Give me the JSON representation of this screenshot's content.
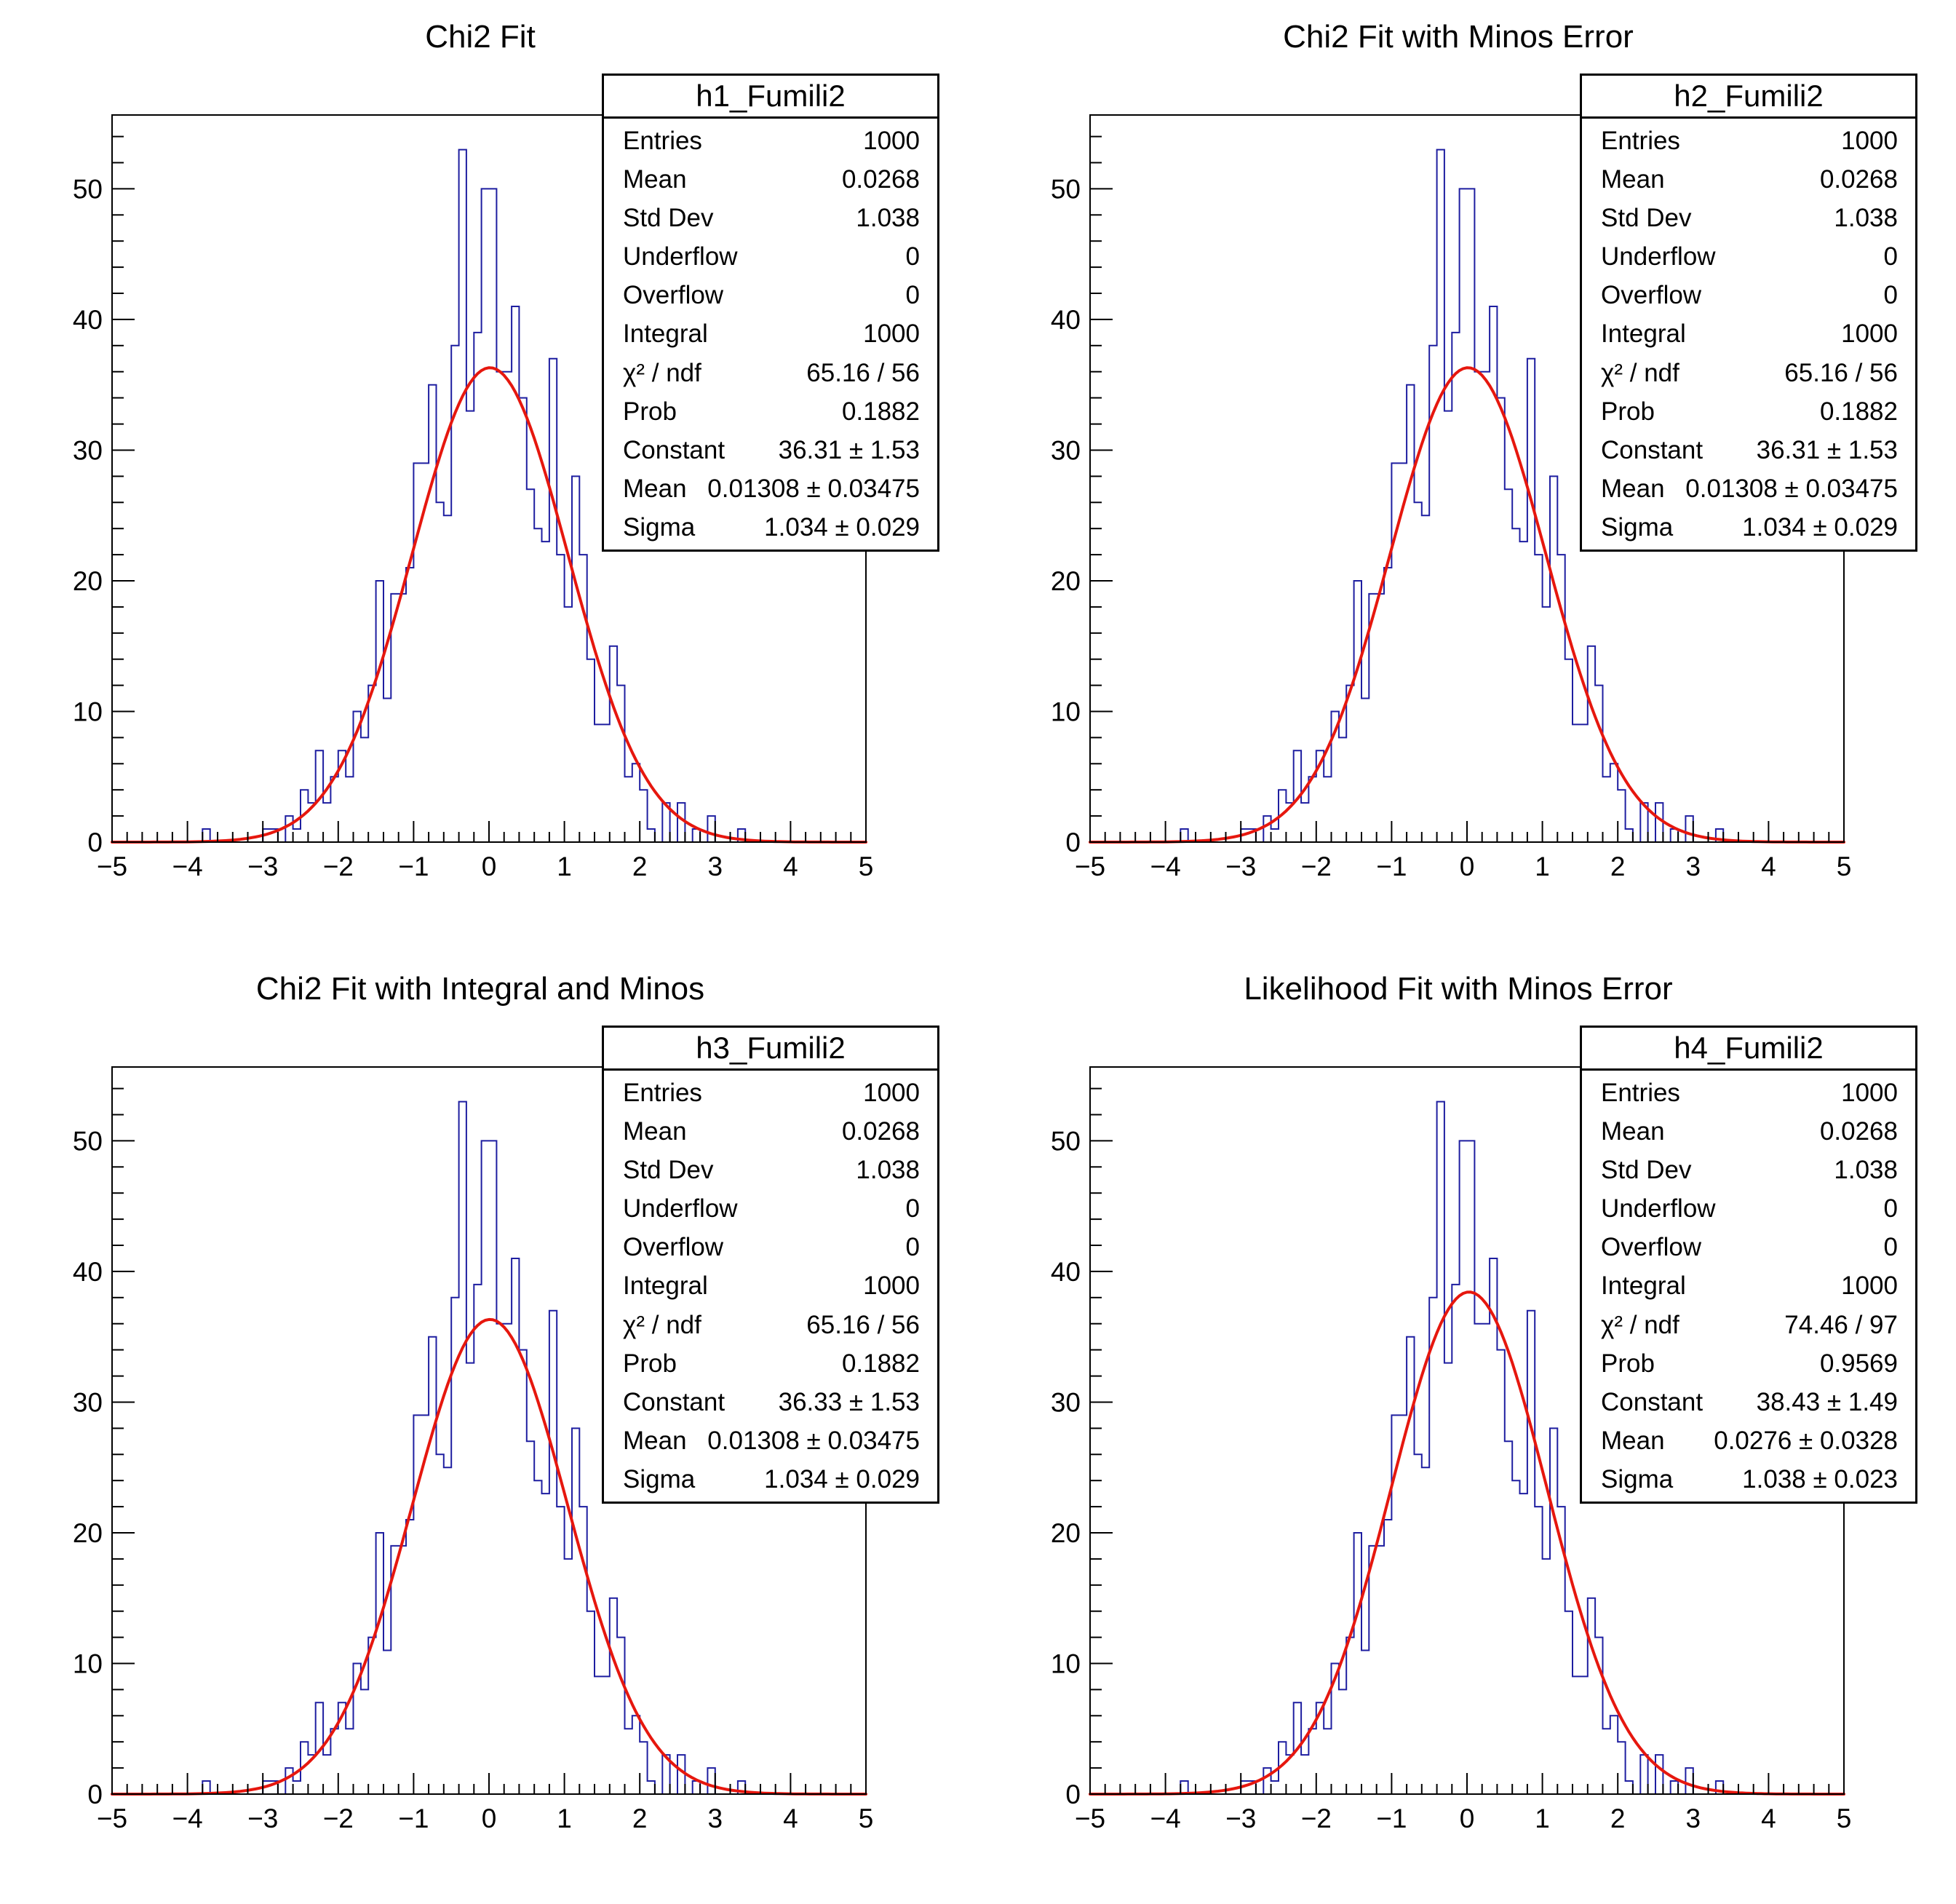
{
  "page": {
    "background": "#ffffff"
  },
  "colors": {
    "histogram_line": "#1e1ea0",
    "fit_curve": "#e6170e",
    "frame": "#000000",
    "text": "#000000",
    "stats_background": "#ffffff"
  },
  "chart_data": {
    "type": "bar",
    "subtype": "histogram-with-gaussian-fit",
    "grid": false,
    "shared_histogram": {
      "x_min": -5,
      "x_max": 5,
      "bins": 100,
      "bin_width": 0.1,
      "entries": 1000,
      "counts": [
        0,
        0,
        0,
        0,
        0,
        0,
        0,
        0,
        0,
        0,
        0,
        0,
        1,
        0,
        0,
        0,
        0,
        0,
        0,
        0,
        1,
        1,
        0,
        2,
        1,
        4,
        3,
        7,
        3,
        5,
        7,
        5,
        10,
        8,
        12,
        20,
        11,
        19,
        19,
        21,
        29,
        29,
        35,
        26,
        25,
        38,
        53,
        33,
        39,
        50,
        50,
        36,
        36,
        41,
        34,
        27,
        24,
        23,
        37,
        22,
        18,
        28,
        22,
        14,
        9,
        9,
        15,
        12,
        5,
        6,
        4,
        1,
        0,
        3,
        0,
        3,
        0,
        1,
        0,
        2,
        0,
        0,
        0,
        1,
        0,
        0,
        0,
        0,
        0,
        0,
        0,
        0,
        0,
        0,
        0,
        0,
        0,
        0,
        0,
        0
      ]
    },
    "x_axis": {
      "min": -5,
      "max": 5,
      "major_step": 1,
      "minor_step": 0.2,
      "major_tick_labels": [
        "−5",
        "−4",
        "−3",
        "−2",
        "−1",
        "0",
        "1",
        "2",
        "3",
        "4",
        "5"
      ]
    },
    "y_axis": {
      "min": 0,
      "max": 55.65,
      "major_step": 10,
      "minor_step": 2,
      "major_tick_labels": [
        "0",
        "10",
        "20",
        "30",
        "40",
        "50"
      ]
    },
    "panels": [
      {
        "title": "Chi2 Fit",
        "fit": {
          "constant": 36.31,
          "mean": 0.01308,
          "sigma": 1.034
        },
        "stats": {
          "name": "h1_Fumili2",
          "rows": [
            {
              "label": "Entries",
              "value": "1000"
            },
            {
              "label": "Mean",
              "value": "0.0268"
            },
            {
              "label": "Std Dev",
              "value": "1.038"
            },
            {
              "label": "Underflow",
              "value": "0"
            },
            {
              "label": "Overflow",
              "value": "0"
            },
            {
              "label": "Integral",
              "value": "1000"
            },
            {
              "label": "χ² / ndf",
              "value": "65.16 / 56"
            },
            {
              "label": "Prob",
              "value": "0.1882"
            },
            {
              "label": "Constant",
              "value": "36.31 ± 1.53"
            },
            {
              "label": "Mean",
              "value": "0.01308 ± 0.03475"
            },
            {
              "label": "Sigma",
              "value": "1.034 ± 0.029"
            }
          ]
        }
      },
      {
        "title": "Chi2 Fit with Minos Error",
        "fit": {
          "constant": 36.31,
          "mean": 0.01308,
          "sigma": 1.034
        },
        "stats": {
          "name": "h2_Fumili2",
          "rows": [
            {
              "label": "Entries",
              "value": "1000"
            },
            {
              "label": "Mean",
              "value": "0.0268"
            },
            {
              "label": "Std Dev",
              "value": "1.038"
            },
            {
              "label": "Underflow",
              "value": "0"
            },
            {
              "label": "Overflow",
              "value": "0"
            },
            {
              "label": "Integral",
              "value": "1000"
            },
            {
              "label": "χ² / ndf",
              "value": "65.16 / 56"
            },
            {
              "label": "Prob",
              "value": "0.1882"
            },
            {
              "label": "Constant",
              "value": "36.31 ± 1.53"
            },
            {
              "label": "Mean",
              "value": "0.01308 ± 0.03475"
            },
            {
              "label": "Sigma",
              "value": "1.034 ± 0.029"
            }
          ]
        }
      },
      {
        "title": "Chi2 Fit with Integral and Minos",
        "fit": {
          "constant": 36.33,
          "mean": 0.01308,
          "sigma": 1.034
        },
        "stats": {
          "name": "h3_Fumili2",
          "rows": [
            {
              "label": "Entries",
              "value": "1000"
            },
            {
              "label": "Mean",
              "value": "0.0268"
            },
            {
              "label": "Std Dev",
              "value": "1.038"
            },
            {
              "label": "Underflow",
              "value": "0"
            },
            {
              "label": "Overflow",
              "value": "0"
            },
            {
              "label": "Integral",
              "value": "1000"
            },
            {
              "label": "χ² / ndf",
              "value": "65.16 / 56"
            },
            {
              "label": "Prob",
              "value": "0.1882"
            },
            {
              "label": "Constant",
              "value": "36.33 ± 1.53"
            },
            {
              "label": "Mean",
              "value": "0.01308 ± 0.03475"
            },
            {
              "label": "Sigma",
              "value": "1.034 ± 0.029"
            }
          ]
        }
      },
      {
        "title": "Likelihood Fit with Minos Error",
        "fit": {
          "constant": 38.43,
          "mean": 0.0276,
          "sigma": 1.038
        },
        "stats": {
          "name": "h4_Fumili2",
          "rows": [
            {
              "label": "Entries",
              "value": "1000"
            },
            {
              "label": "Mean",
              "value": "0.0268"
            },
            {
              "label": "Std Dev",
              "value": "1.038"
            },
            {
              "label": "Underflow",
              "value": "0"
            },
            {
              "label": "Overflow",
              "value": "0"
            },
            {
              "label": "Integral",
              "value": "1000"
            },
            {
              "label": "χ² / ndf",
              "value": "74.46 / 97"
            },
            {
              "label": "Prob",
              "value": "0.9569"
            },
            {
              "label": "Constant",
              "value": "38.43 ± 1.49"
            },
            {
              "label": "Mean",
              "value": "0.0276 ± 0.0328"
            },
            {
              "label": "Sigma",
              "value": "1.038 ± 0.023"
            }
          ]
        }
      }
    ]
  }
}
